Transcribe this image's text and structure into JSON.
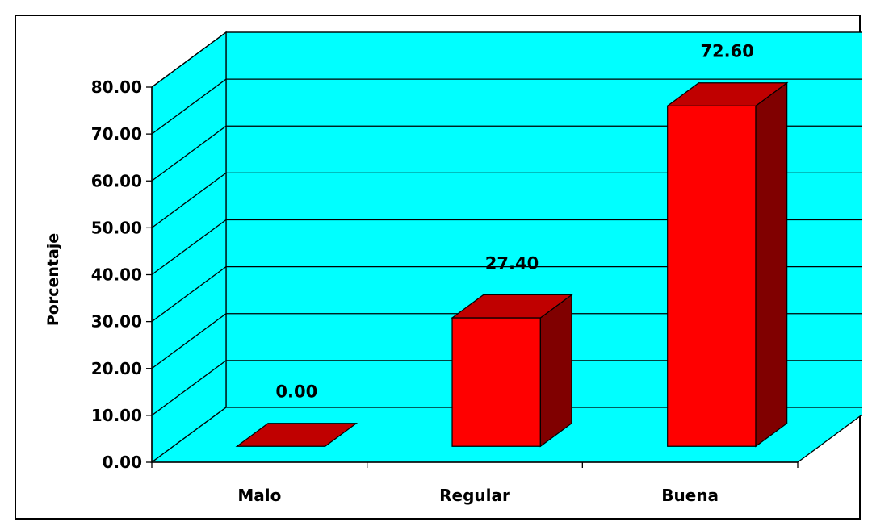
{
  "chart_data": {
    "type": "bar",
    "categories": [
      "Malo",
      "Regular",
      "Buena"
    ],
    "values": [
      0.0,
      27.4,
      72.6
    ],
    "value_labels": [
      "0.00",
      "27.40",
      "72.60"
    ],
    "xlabel": "",
    "ylabel": "Porcentaje",
    "ylim": [
      0,
      80
    ],
    "yticks": [
      "0.00",
      "10.00",
      "20.00",
      "30.00",
      "40.00",
      "50.00",
      "60.00",
      "70.00",
      "80.00"
    ],
    "grid": true,
    "legend": "none",
    "three_d": true
  },
  "colors": {
    "wall": "#00ffff",
    "floor": "#00ffff",
    "bar_front": "#ff0000",
    "bar_top": "#c00000",
    "bar_side": "#800000",
    "gridline": "#000000"
  }
}
